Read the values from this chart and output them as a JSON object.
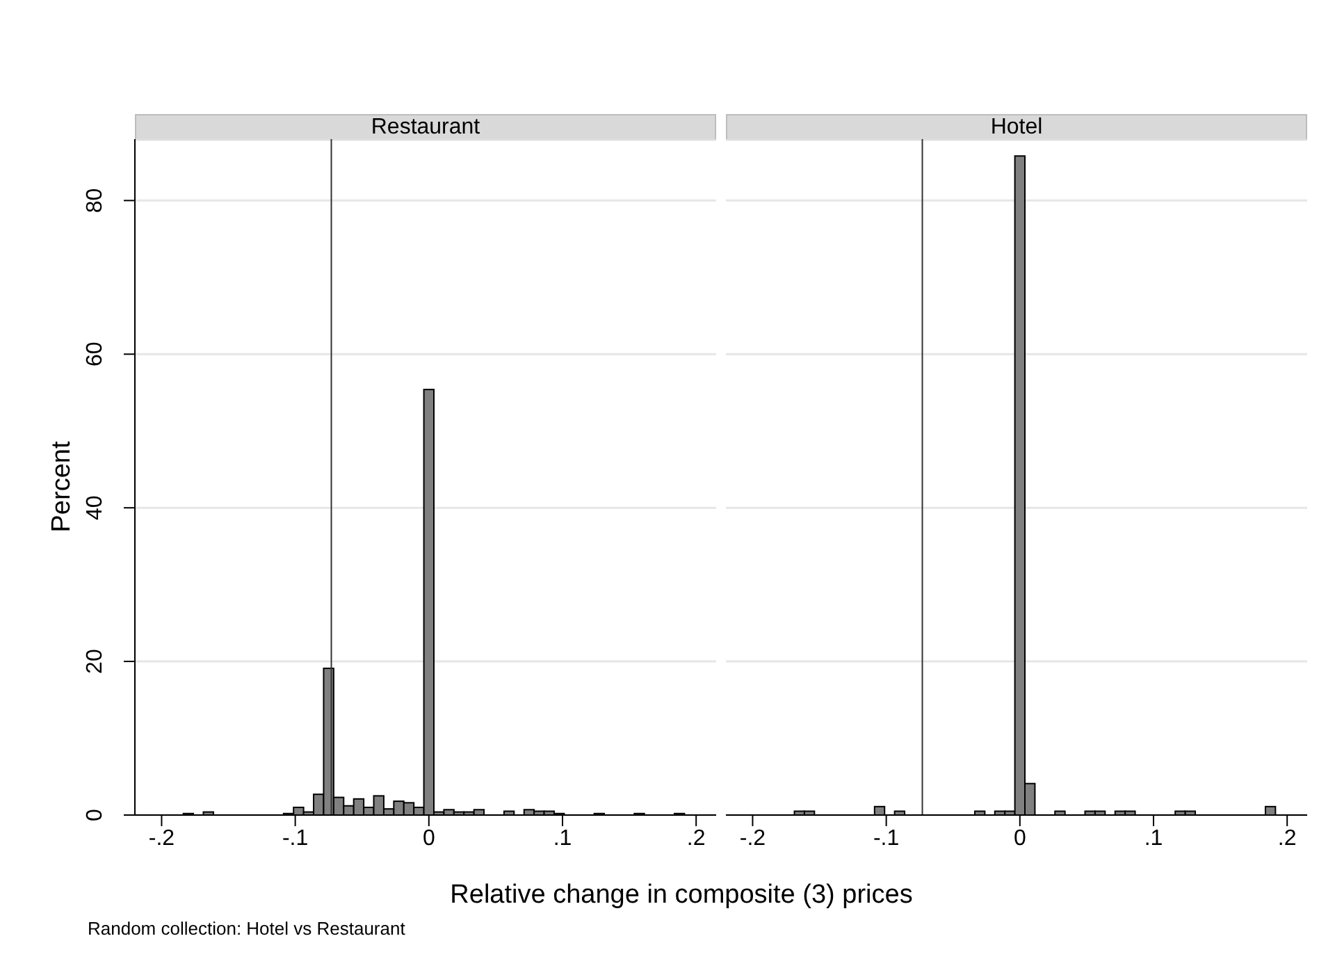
{
  "chart_data": [
    {
      "type": "histogram",
      "title": "Restaurant",
      "ylabel": "Percent",
      "xlabel": "Relative change in composite (3) prices",
      "annotations": [
        "Random collection: Hotel vs Restaurant"
      ],
      "color": "#808080",
      "grid": "y",
      "xlim": [
        -0.22,
        0.215
      ],
      "ylim": [
        0,
        88
      ],
      "xticks": [
        {
          "value": -0.2,
          "label": "-.2"
        },
        {
          "value": -0.1,
          "label": "-.1"
        },
        0,
        {
          "value": 0.1,
          "label": ".1"
        },
        {
          "value": 0.2,
          "label": ".2"
        }
      ],
      "yticks": [
        0,
        20,
        40,
        60,
        80
      ],
      "ref_lines": [
        {
          "axis": "x",
          "value": -0.073,
          "color": "#333333"
        }
      ],
      "bins": [
        -0.19125,
        -0.18375,
        -0.17625,
        -0.16875,
        -0.16125,
        -0.15375,
        -0.14625,
        -0.13875,
        -0.13125,
        -0.12375,
        -0.11625,
        -0.10875,
        -0.10125,
        -0.09375,
        -0.08625,
        -0.07875,
        -0.07125,
        -0.06375,
        -0.05625,
        -0.04875,
        -0.04125,
        -0.03375,
        -0.02625,
        -0.01875,
        -0.01125,
        -0.00375,
        0.00375,
        0.01125,
        0.01875,
        0.02625,
        0.03375,
        0.04125,
        0.04875,
        0.05625,
        0.06375,
        0.07125,
        0.07875,
        0.08625,
        0.09375,
        0.10125,
        0.10875,
        0.11625,
        0.12375,
        0.13125,
        0.13875,
        0.14625,
        0.15375,
        0.16125,
        0.16875,
        0.17625,
        0.18375,
        0.19125
      ],
      "values": [
        0,
        0.2,
        0,
        0.4,
        0,
        0,
        0,
        0,
        0,
        0,
        0,
        0.2,
        1.0,
        0.4,
        2.7,
        19.1,
        2.3,
        1.2,
        2.1,
        1.0,
        2.5,
        0.8,
        1.8,
        1.6,
        1.0,
        55.4,
        0.4,
        0.7,
        0.4,
        0.4,
        0.7,
        0,
        0,
        0.5,
        0,
        0.7,
        0.5,
        0.5,
        0.2,
        0,
        0,
        0,
        0.2,
        0,
        0,
        0,
        0.2,
        0,
        0,
        0,
        0.2
      ]
    },
    {
      "type": "histogram",
      "title": "Hotel",
      "color": "#808080",
      "grid": "y",
      "tick_labels": "x",
      "xlim": [
        -0.22,
        0.215
      ],
      "ylim": [
        0,
        88
      ],
      "xticks": [
        {
          "value": -0.2,
          "label": "-.2"
        },
        {
          "value": -0.1,
          "label": "-.1"
        },
        0,
        {
          "value": 0.1,
          "label": ".1"
        },
        {
          "value": 0.2,
          "label": ".2"
        }
      ],
      "yticks": [
        0,
        20,
        40,
        60,
        80
      ],
      "ref_lines": [
        {
          "axis": "x",
          "value": -0.073,
          "color": "#333333"
        }
      ],
      "bins": [
        -0.19125,
        -0.18375,
        -0.17625,
        -0.16875,
        -0.16125,
        -0.15375,
        -0.14625,
        -0.13875,
        -0.13125,
        -0.12375,
        -0.11625,
        -0.10875,
        -0.10125,
        -0.09375,
        -0.08625,
        -0.07875,
        -0.07125,
        -0.06375,
        -0.05625,
        -0.04875,
        -0.04125,
        -0.03375,
        -0.02625,
        -0.01875,
        -0.01125,
        -0.00375,
        0.00375,
        0.01125,
        0.01875,
        0.02625,
        0.03375,
        0.04125,
        0.04875,
        0.05625,
        0.06375,
        0.07125,
        0.07875,
        0.08625,
        0.09375,
        0.10125,
        0.10875,
        0.11625,
        0.12375,
        0.13125,
        0.13875,
        0.14625,
        0.15375,
        0.16125,
        0.16875,
        0.17625,
        0.18375,
        0.19125
      ],
      "values": [
        0,
        0,
        0,
        0.5,
        0.5,
        0,
        0,
        0,
        0,
        0,
        0,
        1.1,
        0,
        0.5,
        0,
        0,
        0,
        0,
        0,
        0,
        0,
        0.5,
        0,
        0.5,
        0.5,
        85.8,
        4.1,
        0,
        0,
        0.5,
        0,
        0,
        0.5,
        0.5,
        0,
        0.5,
        0.5,
        0,
        0,
        0,
        0,
        0.5,
        0.5,
        0,
        0,
        0,
        0,
        0,
        0,
        0,
        1.1
      ]
    }
  ]
}
